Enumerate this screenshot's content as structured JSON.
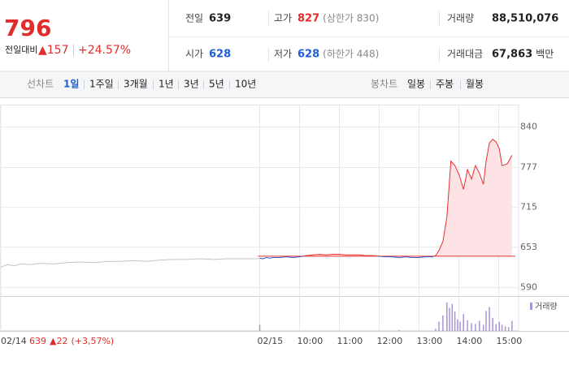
{
  "summary": {
    "price": "796",
    "change_label": "전일대비",
    "change": "▲157",
    "change_pct": "+24.57%"
  },
  "stats": [
    [
      {
        "label": "전일",
        "value": "639",
        "color": "#222222"
      },
      {
        "label": "고가",
        "value": "827",
        "note": "(상한가 830)",
        "color": "#e22b2b"
      },
      {
        "label": "거래량",
        "value": "88,510,076",
        "color": "#222222"
      }
    ],
    [
      {
        "label": "시가",
        "value": "628",
        "color": "#1f5fcf"
      },
      {
        "label": "저가",
        "value": "628",
        "note": "(하한가 448)",
        "color": "#1f5fcf"
      },
      {
        "label": "거래대금",
        "value": "67,863",
        "note": "백만",
        "color": "#222222"
      }
    ]
  ],
  "tabs": {
    "line_label": "선차트",
    "line": [
      "1일",
      "1주일",
      "3개월",
      "1년",
      "3년",
      "5년",
      "10년"
    ],
    "candle_label": "봉차트",
    "candle": [
      "일봉",
      "주봉",
      "월봉"
    ]
  },
  "chart_data": {
    "type": "line",
    "xlim": [
      0,
      780
    ],
    "ylim": [
      577,
      861
    ],
    "yticks": [
      590,
      653,
      715,
      777,
      840
    ],
    "xticks": [
      {
        "value": 0,
        "label": "02/14"
      },
      {
        "value": 390,
        "label": "02/15"
      },
      {
        "value": 450,
        "label": "10:00"
      },
      {
        "value": 510,
        "label": "11:00"
      },
      {
        "value": 570,
        "label": "12:00"
      },
      {
        "value": 630,
        "label": "13:00"
      },
      {
        "value": 690,
        "label": "14:00"
      },
      {
        "value": 750,
        "label": "15:00"
      }
    ],
    "grid": true,
    "baseline": 639,
    "baseline_color": "#e8302f",
    "series": [
      {
        "color": "#c4c4c4",
        "x": [
          0,
          10,
          20,
          30,
          45,
          60,
          80,
          100,
          120,
          140,
          160,
          180,
          200,
          220,
          240,
          260,
          280,
          300,
          320,
          340,
          360,
          380,
          389
        ],
        "values": [
          622,
          626,
          624,
          627,
          626,
          628,
          627,
          629,
          630,
          629,
          631,
          631,
          632,
          631,
          633,
          634,
          634,
          635,
          634,
          635,
          635,
          635,
          635
        ]
      },
      {
        "color": "#e8302f",
        "down_color": "#2f55c8",
        "fill": "#fde3e6",
        "x": [
          390,
          395,
          400,
          405,
          410,
          420,
          430,
          440,
          450,
          460,
          470,
          480,
          490,
          500,
          510,
          520,
          530,
          540,
          550,
          560,
          570,
          580,
          590,
          600,
          610,
          620,
          630,
          640,
          650,
          655,
          660,
          666,
          672,
          678,
          684,
          691,
          697,
          703,
          709,
          715,
          721,
          727,
          731,
          736,
          741,
          746,
          751,
          755,
          763,
          770
        ],
        "values": [
          636,
          635,
          637,
          636,
          637,
          637,
          638,
          637,
          638,
          640,
          641,
          642,
          641,
          642,
          642,
          641,
          641,
          641,
          640,
          640,
          639,
          638,
          638,
          637,
          638,
          637,
          637,
          638,
          638,
          640,
          648,
          662,
          700,
          787,
          780,
          764,
          743,
          774,
          759,
          780,
          768,
          751,
          787,
          815,
          821,
          817,
          806,
          780,
          783,
          796
        ]
      }
    ],
    "volume": {
      "name": "거래량",
      "color": "#a895d6",
      "ylim": [
        0,
        4000000
      ],
      "x": [
        390,
        600,
        655,
        660,
        666,
        672,
        676,
        680,
        684,
        688,
        692,
        697,
        703,
        709,
        715,
        721,
        727,
        731,
        736,
        741,
        746,
        751,
        755,
        760,
        765,
        770
      ],
      "values": [
        800000,
        100000,
        300000,
        1200000,
        2000000,
        3700000,
        3000000,
        3500000,
        2500000,
        1500000,
        1200000,
        2200000,
        1400000,
        1000000,
        900000,
        1300000,
        800000,
        2600000,
        3100000,
        1700000,
        900000,
        1200000,
        800000,
        600000,
        500000,
        1300000
      ]
    }
  },
  "footer": {
    "close": "639",
    "change": "▲22",
    "change_pct": "(+3,57%)"
  }
}
